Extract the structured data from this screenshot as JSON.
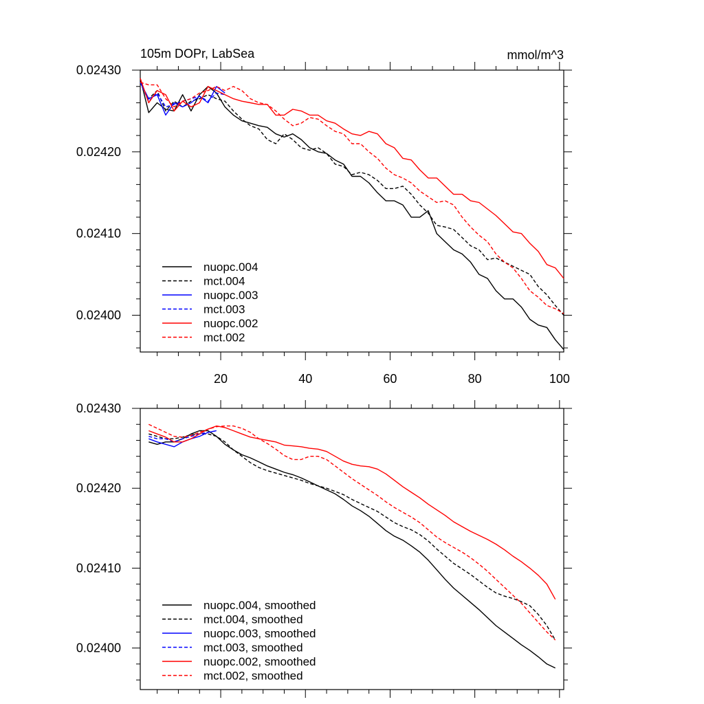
{
  "header": {
    "title_left": "105m DOPr, LabSea",
    "title_right": "mmol/m^3"
  },
  "chart_data": [
    {
      "type": "line",
      "xlim": [
        1,
        101
      ],
      "ylim": [
        0.023955,
        0.0243
      ],
      "x_tick_labels": [
        "20",
        "40",
        "60",
        "80",
        "100"
      ],
      "x_ticks": [
        20,
        40,
        60,
        80,
        100
      ],
      "y_tick_labels": [
        "0.02430",
        "0.02420",
        "0.02410",
        "0.02400"
      ],
      "y_ticks": [
        0.0243,
        0.0242,
        0.0241,
        0.024
      ],
      "legend_position": "bottom-left",
      "series": [
        {
          "name": "nuopc.004",
          "color": "#000000",
          "dash": "solid",
          "x": [
            1,
            3,
            5,
            7,
            9,
            11,
            13,
            15,
            17,
            19,
            21,
            23,
            25,
            27,
            29,
            31,
            33,
            35,
            37,
            39,
            41,
            43,
            45,
            47,
            49,
            51,
            53,
            55,
            57,
            59,
            61,
            63,
            65,
            67,
            69,
            71,
            73,
            75,
            77,
            79,
            81,
            83,
            85,
            87,
            89,
            91,
            93,
            95,
            97,
            99,
            101
          ],
          "y": [
            0.02429,
            0.024248,
            0.02426,
            0.024252,
            0.02425,
            0.02427,
            0.02425,
            0.02427,
            0.02428,
            0.024272,
            0.024255,
            0.024245,
            0.024238,
            0.024235,
            0.024232,
            0.02423,
            0.024222,
            0.024218,
            0.024222,
            0.024215,
            0.024205,
            0.0242,
            0.024198,
            0.02419,
            0.024185,
            0.02417,
            0.02417,
            0.024162,
            0.02415,
            0.02414,
            0.02414,
            0.024135,
            0.02412,
            0.02412,
            0.024128,
            0.0241,
            0.02409,
            0.02408,
            0.024075,
            0.024065,
            0.02405,
            0.024045,
            0.02403,
            0.02402,
            0.02402,
            0.02401,
            0.023995,
            0.023988,
            0.023985,
            0.02397,
            0.023958
          ]
        },
        {
          "name": "mct.004",
          "color": "#000000",
          "dash": "dashed",
          "x": [
            1,
            3,
            5,
            7,
            9,
            11,
            13,
            15,
            17,
            19,
            21,
            23,
            25,
            27,
            29,
            31,
            33,
            35,
            37,
            39,
            41,
            43,
            45,
            47,
            49,
            51,
            53,
            55,
            57,
            59,
            61,
            63,
            65,
            67,
            69,
            71,
            73,
            75,
            77,
            79,
            81,
            83,
            85,
            87,
            89,
            91,
            93,
            95,
            97,
            99,
            101
          ],
          "y": [
            0.024285,
            0.024265,
            0.024275,
            0.02425,
            0.024262,
            0.024255,
            0.024262,
            0.024265,
            0.02427,
            0.024265,
            0.024262,
            0.02425,
            0.02424,
            0.024232,
            0.024228,
            0.024215,
            0.02421,
            0.024222,
            0.024215,
            0.024205,
            0.024202,
            0.024205,
            0.024198,
            0.024185,
            0.024182,
            0.024172,
            0.024175,
            0.024172,
            0.024165,
            0.024155,
            0.024155,
            0.024158,
            0.024148,
            0.024135,
            0.024125,
            0.02411,
            0.024108,
            0.024105,
            0.024095,
            0.024085,
            0.02408,
            0.024068,
            0.02407,
            0.024065,
            0.02406,
            0.024055,
            0.02405,
            0.024035,
            0.024025,
            0.024012,
            0.024
          ]
        },
        {
          "name": "nuopc.003",
          "color": "#0000ff",
          "dash": "solid",
          "x": [
            1,
            3,
            5,
            7,
            9,
            11,
            13,
            15,
            17,
            19,
            21
          ],
          "y": [
            0.024285,
            0.024265,
            0.02427,
            0.024245,
            0.02426,
            0.024255,
            0.02426,
            0.024268,
            0.02426,
            0.02428,
            0.024272
          ]
        },
        {
          "name": "mct.003",
          "color": "#0000ff",
          "dash": "dashed",
          "x": [
            1,
            3,
            5,
            7,
            9,
            11,
            13,
            15,
            17,
            19,
            21
          ],
          "y": [
            0.024285,
            0.024262,
            0.024272,
            0.024255,
            0.024258,
            0.024262,
            0.024265,
            0.024268,
            0.024262,
            0.024272,
            0.02427
          ]
        },
        {
          "name": "nuopc.002",
          "color": "#ff0000",
          "dash": "solid",
          "x": [
            1,
            3,
            5,
            7,
            9,
            11,
            13,
            15,
            17,
            19,
            21,
            23,
            25,
            27,
            29,
            31,
            33,
            35,
            37,
            39,
            41,
            43,
            45,
            47,
            49,
            51,
            53,
            55,
            57,
            59,
            61,
            63,
            65,
            67,
            69,
            71,
            73,
            75,
            77,
            79,
            81,
            83,
            85,
            87,
            89,
            91,
            93,
            95,
            97,
            99,
            101
          ],
          "y": [
            0.02429,
            0.02426,
            0.024275,
            0.02427,
            0.02425,
            0.024262,
            0.024255,
            0.02426,
            0.02428,
            0.024275,
            0.02427,
            0.024265,
            0.024262,
            0.02426,
            0.024258,
            0.024258,
            0.024245,
            0.024245,
            0.024252,
            0.02425,
            0.024245,
            0.024245,
            0.024238,
            0.024235,
            0.024228,
            0.024222,
            0.02422,
            0.024225,
            0.024222,
            0.02421,
            0.024205,
            0.024192,
            0.02419,
            0.024178,
            0.024168,
            0.024168,
            0.024158,
            0.024148,
            0.024148,
            0.02414,
            0.024138,
            0.02413,
            0.024122,
            0.024112,
            0.024102,
            0.0241,
            0.024088,
            0.024078,
            0.024062,
            0.024058,
            0.024045
          ]
        },
        {
          "name": "mct.002",
          "color": "#ff0000",
          "dash": "dashed",
          "x": [
            1,
            3,
            5,
            7,
            9,
            11,
            13,
            15,
            17,
            19,
            21,
            23,
            25,
            27,
            29,
            31,
            33,
            35,
            37,
            39,
            41,
            43,
            45,
            47,
            49,
            51,
            53,
            55,
            57,
            59,
            61,
            63,
            65,
            67,
            69,
            71,
            73,
            75,
            77,
            79,
            81,
            83,
            85,
            87,
            89,
            91,
            93,
            95,
            97,
            99,
            101
          ],
          "y": [
            0.024285,
            0.024282,
            0.024282,
            0.024265,
            0.024255,
            0.024262,
            0.024265,
            0.024272,
            0.024275,
            0.02428,
            0.024275,
            0.02428,
            0.024275,
            0.024265,
            0.02426,
            0.024258,
            0.02425,
            0.02424,
            0.024232,
            0.024235,
            0.024242,
            0.02424,
            0.024232,
            0.024225,
            0.024222,
            0.02421,
            0.02421,
            0.0242,
            0.024192,
            0.02418,
            0.024172,
            0.024168,
            0.024162,
            0.024152,
            0.024145,
            0.024138,
            0.02414,
            0.024135,
            0.02412,
            0.024108,
            0.024098,
            0.02409,
            0.024075,
            0.024065,
            0.024058,
            0.024045,
            0.02403,
            0.024022,
            0.024012,
            0.024008,
            0.024002
          ]
        }
      ]
    },
    {
      "type": "line",
      "xlim": [
        1,
        101
      ],
      "ylim": [
        0.023948,
        0.0243
      ],
      "x_tick_labels": [],
      "x_ticks": [
        20,
        40,
        60,
        80,
        100
      ],
      "y_tick_labels": [
        "0.02430",
        "0.02420",
        "0.02410",
        "0.02400"
      ],
      "y_ticks": [
        0.0243,
        0.0242,
        0.0241,
        0.024
      ],
      "legend_position": "bottom-left",
      "series": [
        {
          "name": "nuopc.004, smoothed",
          "color": "#000000",
          "dash": "solid",
          "x": [
            3,
            5,
            7,
            9,
            11,
            13,
            15,
            17,
            19,
            21,
            23,
            25,
            27,
            29,
            31,
            33,
            35,
            37,
            39,
            41,
            43,
            45,
            47,
            49,
            51,
            53,
            55,
            57,
            59,
            61,
            63,
            65,
            67,
            69,
            71,
            73,
            75,
            77,
            79,
            81,
            83,
            85,
            87,
            89,
            91,
            93,
            95,
            97,
            99
          ],
          "y": [
            0.024258,
            0.024255,
            0.024258,
            0.024258,
            0.024262,
            0.024268,
            0.024272,
            0.024272,
            0.024265,
            0.024255,
            0.024248,
            0.024242,
            0.024238,
            0.024233,
            0.024228,
            0.024224,
            0.02422,
            0.024217,
            0.024213,
            0.024208,
            0.024203,
            0.024198,
            0.024193,
            0.024186,
            0.024178,
            0.024172,
            0.024165,
            0.024156,
            0.024147,
            0.02414,
            0.024135,
            0.024128,
            0.02412,
            0.02411,
            0.024098,
            0.024086,
            0.024075,
            0.024066,
            0.024057,
            0.024048,
            0.024038,
            0.024028,
            0.02402,
            0.024012,
            0.024004,
            0.023997,
            0.023989,
            0.02398,
            0.023975
          ]
        },
        {
          "name": "mct.004, smoothed",
          "color": "#000000",
          "dash": "dashed",
          "x": [
            3,
            5,
            7,
            9,
            11,
            13,
            15,
            17,
            19,
            21,
            23,
            25,
            27,
            29,
            31,
            33,
            35,
            37,
            39,
            41,
            43,
            45,
            47,
            49,
            51,
            53,
            55,
            57,
            59,
            61,
            63,
            65,
            67,
            69,
            71,
            73,
            75,
            77,
            79,
            81,
            83,
            85,
            87,
            89,
            91,
            93,
            95,
            97,
            99
          ],
          "y": [
            0.024268,
            0.024265,
            0.024262,
            0.024262,
            0.024264,
            0.024267,
            0.024268,
            0.024268,
            0.024265,
            0.024258,
            0.024248,
            0.02424,
            0.024232,
            0.024226,
            0.024222,
            0.024219,
            0.024216,
            0.024213,
            0.02421,
            0.024206,
            0.024203,
            0.0242,
            0.024196,
            0.024192,
            0.024186,
            0.024181,
            0.024176,
            0.024171,
            0.024164,
            0.024157,
            0.024152,
            0.024148,
            0.024142,
            0.024134,
            0.024124,
            0.024115,
            0.024106,
            0.024099,
            0.024092,
            0.024084,
            0.024076,
            0.024069,
            0.024065,
            0.024062,
            0.024058,
            0.024053,
            0.024042,
            0.024028,
            0.02401
          ]
        },
        {
          "name": "nuopc.003, smoothed",
          "color": "#0000ff",
          "dash": "solid",
          "x": [
            3,
            5,
            7,
            9,
            11,
            13,
            15,
            17,
            19
          ],
          "y": [
            0.024262,
            0.024258,
            0.024255,
            0.024252,
            0.024258,
            0.024262,
            0.024265,
            0.02427,
            0.024272
          ]
        },
        {
          "name": "mct.003, smoothed",
          "color": "#0000ff",
          "dash": "dashed",
          "x": [
            3,
            5,
            7,
            9,
            11,
            13,
            15,
            17,
            19
          ],
          "y": [
            0.024265,
            0.024262,
            0.024262,
            0.024258,
            0.024262,
            0.024265,
            0.024268,
            0.02427,
            0.024272
          ]
        },
        {
          "name": "nuopc.002, smoothed",
          "color": "#ff0000",
          "dash": "solid",
          "x": [
            3,
            5,
            7,
            9,
            11,
            13,
            15,
            17,
            19,
            21,
            23,
            25,
            27,
            29,
            31,
            33,
            35,
            37,
            39,
            41,
            43,
            45,
            47,
            49,
            51,
            53,
            55,
            57,
            59,
            61,
            63,
            65,
            67,
            69,
            71,
            73,
            75,
            77,
            79,
            81,
            83,
            85,
            87,
            89,
            91,
            93,
            95,
            97,
            99
          ],
          "y": [
            0.024272,
            0.024268,
            0.024264,
            0.024258,
            0.024258,
            0.024262,
            0.024268,
            0.024274,
            0.024278,
            0.024276,
            0.024272,
            0.024268,
            0.024264,
            0.024262,
            0.02426,
            0.024258,
            0.024254,
            0.024253,
            0.024252,
            0.02425,
            0.024249,
            0.024246,
            0.02424,
            0.024234,
            0.02423,
            0.024228,
            0.024227,
            0.024224,
            0.024218,
            0.02421,
            0.024202,
            0.024195,
            0.024188,
            0.02418,
            0.024173,
            0.024166,
            0.024158,
            0.024152,
            0.024146,
            0.024141,
            0.024136,
            0.02413,
            0.024123,
            0.024115,
            0.024108,
            0.0241,
            0.024091,
            0.02408,
            0.024061
          ]
        },
        {
          "name": "mct.002, smoothed",
          "color": "#ff0000",
          "dash": "dashed",
          "x": [
            3,
            5,
            7,
            9,
            11,
            13,
            15,
            17,
            19,
            21,
            23,
            25,
            27,
            29,
            31,
            33,
            35,
            37,
            39,
            41,
            43,
            45,
            47,
            49,
            51,
            53,
            55,
            57,
            59,
            61,
            63,
            65,
            67,
            69,
            71,
            73,
            75,
            77,
            79,
            81,
            83,
            85,
            87,
            89,
            91,
            93,
            95,
            97,
            99
          ],
          "y": [
            0.02428,
            0.024275,
            0.02427,
            0.024265,
            0.024264,
            0.024266,
            0.02427,
            0.024274,
            0.024277,
            0.024278,
            0.024278,
            0.024275,
            0.02427,
            0.024262,
            0.024256,
            0.024249,
            0.024241,
            0.024236,
            0.024236,
            0.02424,
            0.02424,
            0.024236,
            0.024228,
            0.02422,
            0.024212,
            0.024205,
            0.024198,
            0.024191,
            0.024183,
            0.024176,
            0.02417,
            0.024164,
            0.024157,
            0.024148,
            0.024139,
            0.024132,
            0.024126,
            0.02412,
            0.024113,
            0.024105,
            0.024096,
            0.024086,
            0.024076,
            0.024066,
            0.024056,
            0.024044,
            0.024032,
            0.02402,
            0.02401
          ]
        }
      ]
    }
  ]
}
